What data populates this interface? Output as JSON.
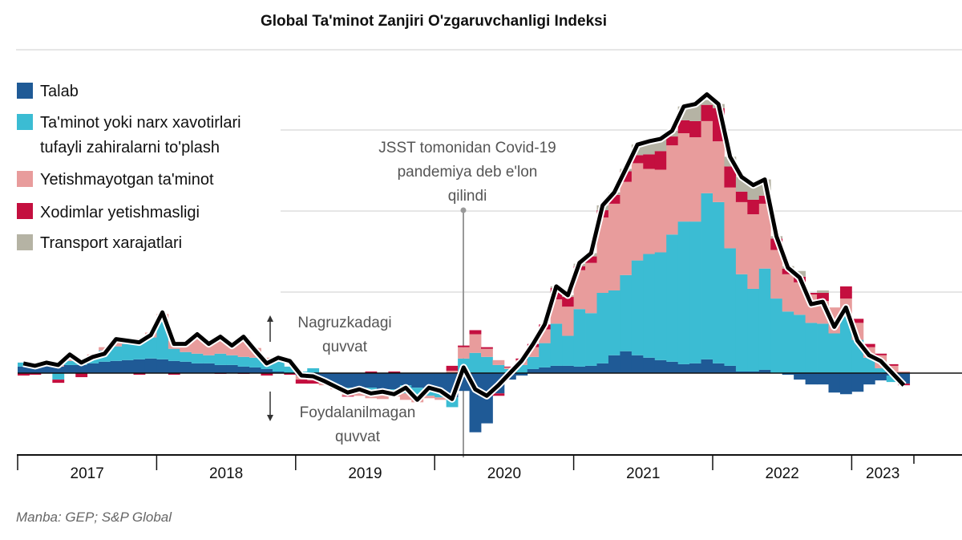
{
  "chart_data": {
    "type": "bar",
    "stacked": true,
    "title": "Global Ta'minot Zanjiri O'zgaruvchanligi Indeksi",
    "source": "Manba: GEP; S&P Global",
    "x_start": "2017-01",
    "x_end": "2023-05",
    "frequency": "monthly",
    "x_tick_labels": [
      "2017",
      "2018",
      "2019",
      "2020",
      "2021",
      "2022",
      "2023"
    ],
    "ylim": [
      -1,
      4
    ],
    "grid": true,
    "legend_position": "top-left",
    "colors": {
      "demand": "#1f5a96",
      "stockpiling": "#3bbcd3",
      "shortages": "#e89c9c",
      "staff": "#c40f3f",
      "transport": "#b5b3a4",
      "index": "#000000"
    },
    "series": [
      {
        "key": "demand",
        "name": "Talab",
        "values": [
          0.08,
          0.08,
          0.1,
          0.08,
          0.1,
          0.1,
          0.12,
          0.14,
          0.15,
          0.16,
          0.17,
          0.18,
          0.17,
          0.15,
          0.14,
          0.12,
          0.12,
          0.1,
          0.1,
          0.08,
          0.07,
          0.05,
          0.02,
          0,
          -0.03,
          -0.05,
          -0.1,
          -0.15,
          -0.18,
          -0.2,
          -0.18,
          -0.2,
          -0.2,
          -0.15,
          -0.18,
          -0.2,
          -0.22,
          -0.3,
          -0.22,
          -0.73,
          -0.62,
          -0.25,
          -0.08,
          -0.03,
          0.05,
          0.07,
          0.09,
          0.09,
          0.08,
          0.09,
          0.12,
          0.22,
          0.27,
          0.22,
          0.19,
          0.16,
          0.14,
          0.11,
          0.12,
          0.17,
          0.12,
          0.09,
          0.02,
          0.02,
          0.04,
          0,
          -0.02,
          -0.08,
          -0.14,
          -0.14,
          -0.24,
          -0.26,
          -0.23,
          -0.14,
          -0.09,
          -0.03,
          -0.13
        ]
      },
      {
        "key": "stockpiling",
        "name": "Ta'minot yoki narx xavotirlari tufayli zahiralarni to'plash",
        "values": [
          0.05,
          0.03,
          0.03,
          -0.08,
          0.05,
          0.02,
          0.08,
          0.14,
          0.18,
          0.2,
          0.22,
          0.26,
          0.5,
          0.15,
          0.12,
          0.12,
          0.1,
          0.14,
          0.12,
          0.12,
          0.12,
          0.08,
          0.12,
          0.08,
          0.02,
          0.06,
          -0.02,
          -0.03,
          -0.08,
          -0.05,
          -0.1,
          -0.06,
          -0.05,
          -0.1,
          -0.12,
          -0.08,
          -0.08,
          -0.12,
          0.18,
          0.25,
          0.2,
          0.1,
          0.05,
          0.1,
          0.15,
          0.3,
          0.52,
          0.37,
          0.71,
          0.65,
          0.87,
          0.8,
          0.94,
          1.17,
          1.28,
          1.33,
          1.57,
          1.76,
          1.75,
          2.05,
          1.99,
          1.45,
          1.2,
          1.02,
          1.25,
          0.92,
          0.76,
          0.72,
          0.62,
          0.61,
          0.49,
          0.72,
          0.41,
          0.19,
          0.06,
          -0.08,
          0
        ]
      },
      {
        "key": "shortages",
        "name": "Yetishmayotgan ta'minot",
        "values": [
          0,
          0,
          0.02,
          0.02,
          0.08,
          0.03,
          0.03,
          0.04,
          0.06,
          0.05,
          0.04,
          0.06,
          0.06,
          0.1,
          0.1,
          0.22,
          0.14,
          0.2,
          0.12,
          0.24,
          0.12,
          0.06,
          0.02,
          0,
          -0.05,
          -0.04,
          -0.03,
          -0.02,
          -0.02,
          -0.03,
          -0.03,
          -0.06,
          -0.04,
          -0.08,
          -0.06,
          -0.03,
          -0.03,
          0.03,
          0.14,
          0.23,
          0.1,
          0.06,
          0.02,
          0.06,
          0.12,
          0.17,
          0.3,
          0.36,
          0.48,
          0.62,
          0.93,
          1.07,
          1.15,
          1.2,
          1.05,
          1.02,
          1.1,
          1.09,
          1.04,
          0.89,
          0.75,
          0.75,
          0.89,
          0.92,
          0.8,
          0.6,
          0.46,
          0.4,
          0.35,
          0.28,
          0.32,
          0.2,
          0.21,
          0.13,
          0.16,
          0.09,
          0.02
        ]
      },
      {
        "key": "staff",
        "name": "Xodimlar yetishmasligi",
        "values": [
          -0.03,
          -0.02,
          0,
          -0.04,
          0,
          -0.05,
          0,
          0,
          0.01,
          0,
          -0.02,
          0,
          0,
          -0.02,
          0,
          0,
          0,
          -0.01,
          0,
          -0.01,
          0,
          -0.03,
          0,
          -0.02,
          -0.05,
          -0.04,
          0,
          0,
          -0.01,
          0,
          0.02,
          0,
          0.02,
          0,
          0,
          0,
          0,
          0.06,
          0.02,
          0.05,
          0.02,
          -0.03,
          0.01,
          0.02,
          0.04,
          0.06,
          0.14,
          0.12,
          0.05,
          0.08,
          0.09,
          0.11,
          0.13,
          0.1,
          0.18,
          0.23,
          0.11,
          0.16,
          0.2,
          0.2,
          0.41,
          0.26,
          0.13,
          0.18,
          0.1,
          0.14,
          0.07,
          0.07,
          0.02,
          0.1,
          0,
          0.15,
          0.05,
          0.04,
          0.02,
          0.02,
          -0.02
        ]
      },
      {
        "key": "transport",
        "name": "Transport xarajatlari",
        "values": [
          0,
          0,
          0,
          0,
          0,
          0,
          0,
          0,
          0,
          0,
          0,
          0,
          0,
          0,
          0,
          0,
          0,
          0,
          0,
          0,
          0,
          0,
          0,
          0,
          0,
          0,
          0,
          0,
          0,
          0,
          0,
          0,
          0,
          0,
          0,
          0,
          0,
          0,
          0,
          0,
          0,
          0,
          0,
          0,
          0,
          0,
          0.02,
          0.02,
          0.03,
          0.04,
          0.06,
          0.03,
          0.03,
          0.13,
          0.16,
          0.15,
          0.07,
          0.17,
          0.21,
          0.06,
          0.05,
          0.12,
          0.18,
          0.18,
          0.2,
          0.03,
          0.03,
          0.07,
          0,
          0.03,
          0,
          0,
          0,
          0,
          0,
          0,
          0
        ]
      }
    ],
    "index": [
      0.12,
      0.09,
      0.13,
      0.1,
      0.23,
      0.13,
      0.2,
      0.24,
      0.42,
      0.4,
      0.38,
      0.47,
      0.75,
      0.36,
      0.36,
      0.48,
      0.36,
      0.45,
      0.34,
      0.45,
      0.28,
      0.12,
      0.19,
      0.15,
      -0.03,
      -0.04,
      -0.1,
      -0.17,
      -0.24,
      -0.2,
      -0.25,
      -0.23,
      -0.26,
      -0.18,
      -0.33,
      -0.18,
      -0.22,
      -0.32,
      0.07,
      -0.2,
      -0.28,
      -0.15,
      0,
      0.15,
      0.36,
      0.6,
      1.07,
      0.96,
      1.36,
      1.48,
      2.07,
      2.23,
      2.52,
      2.82,
      2.86,
      2.89,
      2.99,
      3.29,
      3.32,
      3.44,
      3.32,
      2.67,
      2.42,
      2.32,
      2.39,
      1.69,
      1.3,
      1.18,
      0.85,
      0.88,
      0.57,
      0.81,
      0.4,
      0.22,
      0.15,
      0,
      -0.15
    ],
    "annotations": {
      "covid_line1": "JSST tomonidan Covid-19",
      "covid_line2": "pandemiya deb e'lon",
      "covid_line3": "qilindi",
      "covid_date": "2020-03",
      "above_line1": "Nagruzkadagi",
      "above_line2": "quvvat",
      "below_line1": "Foydalanilmagan",
      "below_line2": "quvvat"
    }
  }
}
